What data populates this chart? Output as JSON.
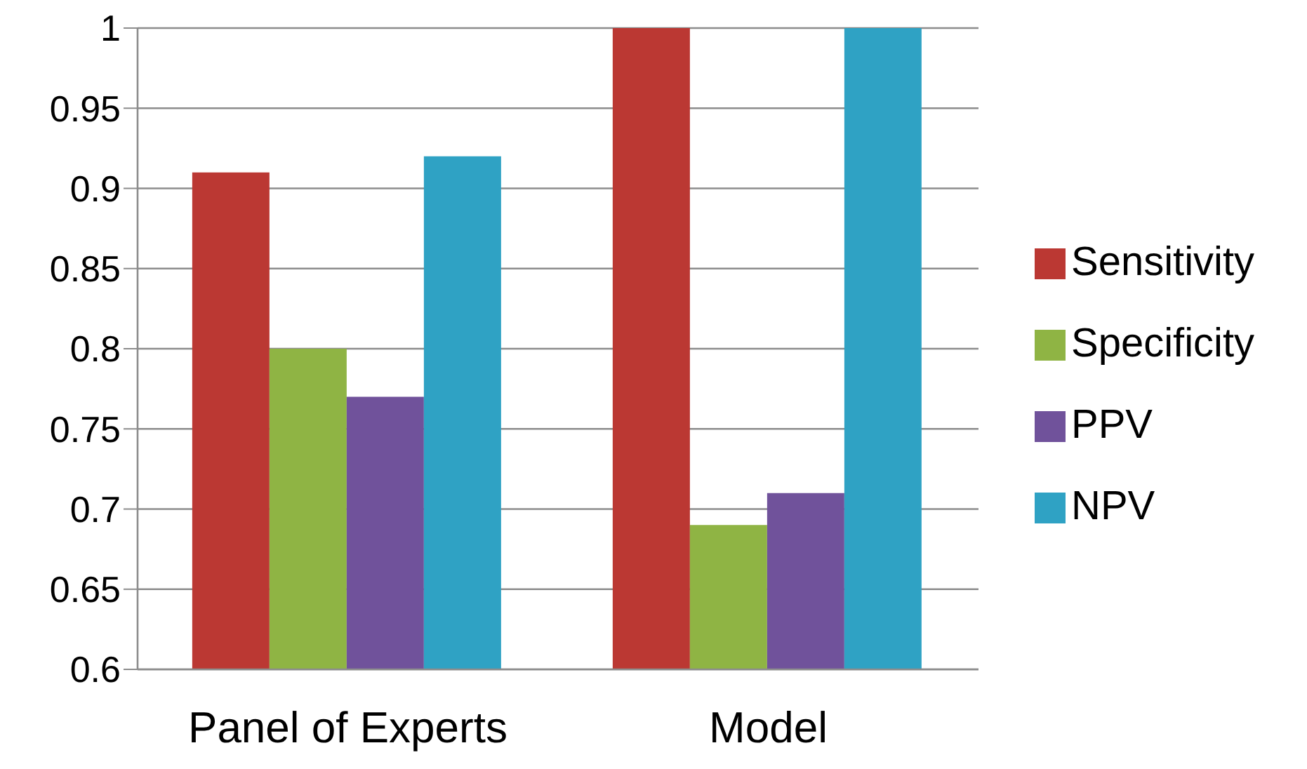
{
  "chart_data": {
    "type": "bar",
    "categories": [
      "Panel of Experts",
      "Model"
    ],
    "series": [
      {
        "name": "Sensitivity",
        "color": "#bb3833",
        "values": [
          0.91,
          1
        ]
      },
      {
        "name": "Specificity",
        "color": "#8fb444",
        "values": [
          0.8,
          0.69
        ]
      },
      {
        "name": "PPV",
        "color": "#70529b",
        "values": [
          0.77,
          0.71
        ]
      },
      {
        "name": "NPV",
        "color": "#2fa2c4",
        "values": [
          0.92,
          1
        ]
      }
    ],
    "ylim": [
      0.6,
      1
    ],
    "yticks": [
      0.6,
      0.65,
      0.7,
      0.75,
      0.8,
      0.85,
      0.9,
      0.95,
      1
    ],
    "grid": "y",
    "legend": "right"
  }
}
